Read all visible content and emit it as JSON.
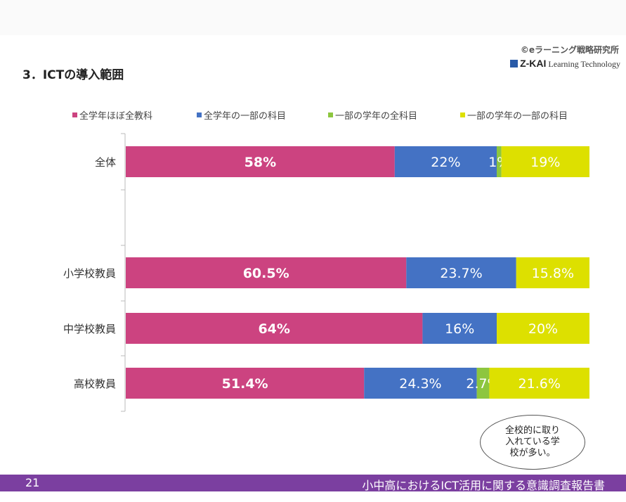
{
  "header": {
    "title": "3．ICTの導入範囲",
    "org": "©eラーニング戦略研究所",
    "logo_text": "Z-KAI",
    "logo_sub": "Learning Technology"
  },
  "footer": {
    "page": "21",
    "text": "小中高におけるICT活用に関する意識調査報告書"
  },
  "note": "全校的に取り入れている学校が多い。",
  "chart_data": {
    "type": "bar",
    "orientation": "horizontal",
    "stacked": true,
    "xlim": [
      0,
      100
    ],
    "categories": [
      "全体",
      "小学校教員",
      "中学校教員",
      "高校教員"
    ],
    "legend_position": "top",
    "series": [
      {
        "name": "全学年ほぼ全教科",
        "color": "#cc4380",
        "values": [
          58,
          60.5,
          64,
          51.4
        ],
        "labels": [
          "58%",
          "60.5%",
          "64%",
          "51.4%"
        ]
      },
      {
        "name": "全学年の一部の科目",
        "color": "#4472c4",
        "values": [
          22,
          23.7,
          16,
          24.3
        ],
        "labels": [
          "22%",
          "23.7%",
          "16%",
          "24.3%"
        ]
      },
      {
        "name": "一部の学年の全科目",
        "color": "#8dc63f",
        "values": [
          1,
          0,
          0,
          2.7
        ],
        "labels": [
          "1%",
          "",
          "",
          "2.7%"
        ]
      },
      {
        "name": "一部の学年の一部の科目",
        "color": "#dde000",
        "values": [
          19,
          15.8,
          20,
          21.6
        ],
        "labels": [
          "19%",
          "15.8%",
          "20%",
          "21.6%"
        ]
      }
    ]
  }
}
